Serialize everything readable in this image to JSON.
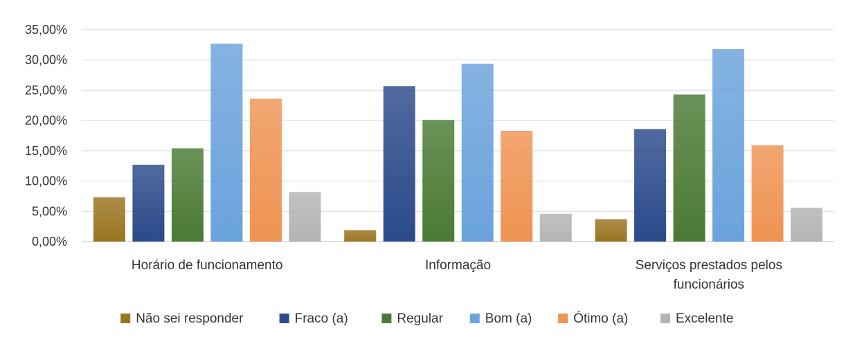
{
  "chart_data": {
    "type": "bar",
    "title": "",
    "xlabel": "",
    "ylabel": "",
    "categories": [
      [
        "Horário de funcionamento"
      ],
      [
        "Informação"
      ],
      [
        "Serviços prestados pelos",
        "funcionários"
      ]
    ],
    "series": [
      {
        "name": "Não sei responder",
        "color": "#9a7421",
        "values": [
          7.3,
          1.9,
          3.7
        ]
      },
      {
        "name": "Fraco (a)",
        "color": "#2b4a8a",
        "values": [
          12.7,
          25.7,
          18.6
        ]
      },
      {
        "name": "Regular",
        "color": "#4a7a34",
        "values": [
          15.4,
          20.1,
          24.3
        ]
      },
      {
        "name": "Bom (a)",
        "color": "#6aa3dc",
        "values": [
          32.7,
          29.4,
          31.8
        ]
      },
      {
        "name": "Ótimo (a)",
        "color": "#ef9352",
        "values": [
          23.6,
          18.3,
          15.9
        ]
      },
      {
        "name": "Excelente",
        "color": "#b4b4b4",
        "values": [
          8.2,
          4.6,
          5.6
        ]
      }
    ],
    "ylim": [
      0,
      35
    ],
    "yticks": [
      "0,00%",
      "5,00%",
      "10,00%",
      "15,00%",
      "20,00%",
      "25,00%",
      "30,00%",
      "35,00%"
    ],
    "grid": true,
    "legend": "bottom"
  }
}
